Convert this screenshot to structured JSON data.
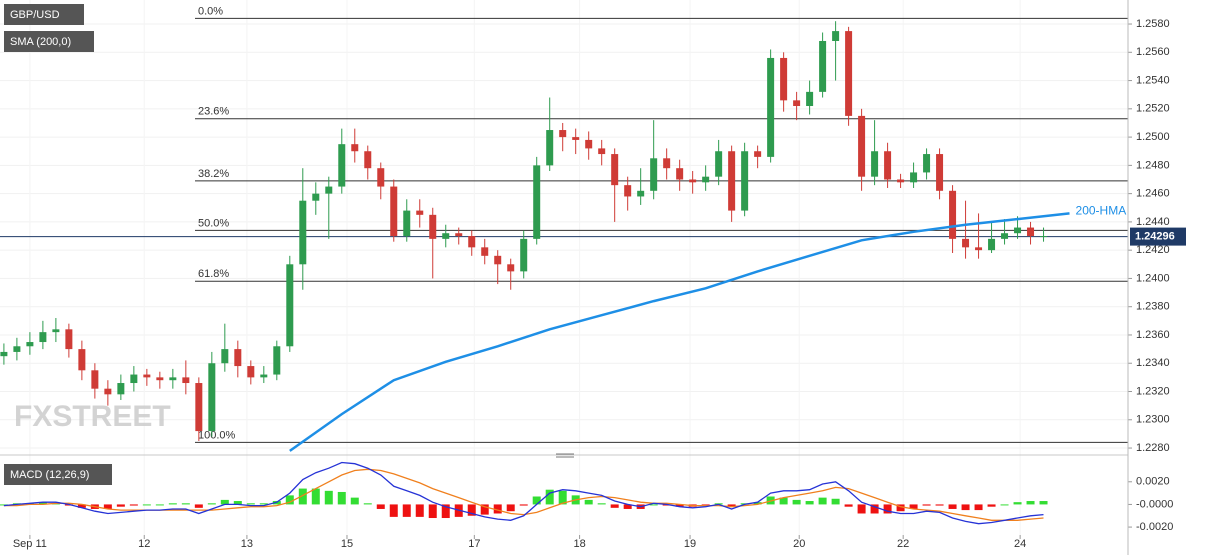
{
  "chart_data": {
    "type": "candlestick",
    "symbol": "GBP/USD",
    "indicator": "SMA (200,0)",
    "watermark": "FXSTREET",
    "up_color": "#2e9b4f",
    "down_color": "#cf3b36",
    "grid": true,
    "xlim": [
      -0.3,
      86.5
    ],
    "xticks": [
      {
        "value": 2,
        "label": "Sep 11"
      },
      {
        "value": 10.8,
        "label": "12"
      },
      {
        "value": 18.7,
        "label": "13"
      },
      {
        "value": 26.4,
        "label": "15"
      },
      {
        "value": 36.2,
        "label": "17"
      },
      {
        "value": 44.3,
        "label": "18"
      },
      {
        "value": 52.8,
        "label": "19"
      },
      {
        "value": 61.2,
        "label": "20"
      },
      {
        "value": 69.2,
        "label": "22"
      },
      {
        "value": 78.2,
        "label": "24"
      }
    ],
    "ylim": [
      1.22772,
      1.2597
    ],
    "yticks": [
      {
        "value": 1.228,
        "label": "1.2280"
      },
      {
        "value": 1.23,
        "label": "1.2300"
      },
      {
        "value": 1.232,
        "label": "1.2320"
      },
      {
        "value": 1.234,
        "label": "1.2340"
      },
      {
        "value": 1.236,
        "label": "1.2360"
      },
      {
        "value": 1.238,
        "label": "1.2380"
      },
      {
        "value": 1.24,
        "label": "1.2400"
      },
      {
        "value": 1.242,
        "label": "1.2420"
      },
      {
        "value": 1.244,
        "label": "1.2440"
      },
      {
        "value": 1.246,
        "label": "1.2460"
      },
      {
        "value": 1.248,
        "label": "1.2480"
      },
      {
        "value": 1.25,
        "label": "1.2500"
      },
      {
        "value": 1.252,
        "label": "1.2520"
      },
      {
        "value": 1.254,
        "label": "1.2540"
      },
      {
        "value": 1.256,
        "label": "1.2560"
      },
      {
        "value": 1.258,
        "label": "1.2580"
      }
    ],
    "open": [
      1.2345,
      1.2348,
      1.2352,
      1.2355,
      1.2362,
      1.2364,
      1.235,
      1.2335,
      1.2322,
      1.2318,
      1.2326,
      1.2332,
      1.233,
      1.2328,
      1.233,
      1.2326,
      1.2292,
      1.234,
      1.235,
      1.2338,
      1.233,
      1.2332,
      1.2352,
      1.241,
      1.2455,
      1.246,
      1.2465,
      1.2495,
      1.249,
      1.2478,
      1.2465,
      1.243,
      1.2448,
      1.2445,
      1.2428,
      1.2432,
      1.243,
      1.2422,
      1.2416,
      1.241,
      1.2405,
      1.2428,
      1.248,
      1.2505,
      1.25,
      1.2498,
      1.2492,
      1.2488,
      1.2466,
      1.2458,
      1.2462,
      1.2485,
      1.2478,
      1.247,
      1.2468,
      1.2472,
      1.249,
      1.2448,
      1.249,
      1.2486,
      1.2556,
      1.2526,
      1.2522,
      1.2532,
      1.2568,
      1.2575,
      1.2515,
      1.2472,
      1.249,
      1.247,
      1.2468,
      1.2475,
      1.2488,
      1.2462,
      1.2428,
      1.2422,
      1.242,
      1.2428,
      1.2432,
      1.2436,
      1.243
    ],
    "high": [
      1.2354,
      1.2358,
      1.2362,
      1.237,
      1.2372,
      1.2368,
      1.2356,
      1.234,
      1.2328,
      1.2332,
      1.2338,
      1.2336,
      1.2334,
      1.2336,
      1.2342,
      1.233,
      1.2348,
      1.2368,
      1.2356,
      1.2342,
      1.2338,
      1.2356,
      1.2416,
      1.2478,
      1.2468,
      1.2472,
      1.2506,
      1.2506,
      1.2494,
      1.2482,
      1.247,
      1.2456,
      1.2456,
      1.245,
      1.2438,
      1.2436,
      1.2434,
      1.2428,
      1.242,
      1.2414,
      1.2434,
      1.2486,
      1.2528,
      1.251,
      1.2506,
      1.2504,
      1.2498,
      1.2492,
      1.2472,
      1.2478,
      1.2512,
      1.2492,
      1.2484,
      1.2476,
      1.248,
      1.2498,
      1.2494,
      1.2496,
      1.2494,
      1.2562,
      1.256,
      1.2532,
      1.254,
      1.2574,
      1.2582,
      1.2578,
      1.252,
      1.2512,
      1.2496,
      1.2474,
      1.2482,
      1.2492,
      1.2492,
      1.2466,
      1.2455,
      1.2446,
      1.244,
      1.2442,
      1.2444,
      1.244,
      1.2436
    ],
    "low": [
      1.2339,
      1.2342,
      1.2346,
      1.235,
      1.2355,
      1.2344,
      1.2328,
      1.2315,
      1.231,
      1.2314,
      1.232,
      1.2324,
      1.2322,
      1.2322,
      1.2318,
      1.2285,
      1.2288,
      1.2334,
      1.233,
      1.2325,
      1.2326,
      1.2328,
      1.2348,
      1.2392,
      1.2445,
      1.2428,
      1.246,
      1.2482,
      1.247,
      1.2456,
      1.2426,
      1.2426,
      1.2436,
      1.24,
      1.2422,
      1.2424,
      1.2416,
      1.241,
      1.2396,
      1.2392,
      1.24,
      1.2424,
      1.2476,
      1.249,
      1.2488,
      1.2484,
      1.248,
      1.244,
      1.2448,
      1.2452,
      1.2456,
      1.247,
      1.2462,
      1.246,
      1.2462,
      1.2466,
      1.244,
      1.2444,
      1.2478,
      1.2482,
      1.2518,
      1.2512,
      1.2516,
      1.2528,
      1.254,
      1.2508,
      1.2462,
      1.2466,
      1.2464,
      1.2464,
      1.2464,
      1.247,
      1.2456,
      1.2418,
      1.2414,
      1.2414,
      1.2418,
      1.2424,
      1.2428,
      1.2424,
      1.2426
    ],
    "close": [
      1.2348,
      1.2352,
      1.2355,
      1.2362,
      1.2364,
      1.235,
      1.2335,
      1.2322,
      1.2318,
      1.2326,
      1.2332,
      1.233,
      1.2328,
      1.233,
      1.2326,
      1.2292,
      1.234,
      1.235,
      1.2338,
      1.233,
      1.2332,
      1.2352,
      1.241,
      1.2455,
      1.246,
      1.2465,
      1.2495,
      1.249,
      1.2478,
      1.2465,
      1.243,
      1.2448,
      1.2445,
      1.2428,
      1.2432,
      1.243,
      1.2422,
      1.2416,
      1.241,
      1.2405,
      1.2428,
      1.248,
      1.2505,
      1.25,
      1.2498,
      1.2492,
      1.2488,
      1.2466,
      1.2458,
      1.2462,
      1.2485,
      1.2478,
      1.247,
      1.2468,
      1.2472,
      1.249,
      1.2448,
      1.249,
      1.2486,
      1.2556,
      1.2526,
      1.2522,
      1.2532,
      1.2568,
      1.2575,
      1.2515,
      1.2472,
      1.249,
      1.247,
      1.2468,
      1.2475,
      1.2488,
      1.2462,
      1.2428,
      1.2422,
      1.242,
      1.2428,
      1.2432,
      1.2436,
      1.243,
      1.243
    ],
    "hma": {
      "name": "200-HMA",
      "color": "#1e8fe6",
      "x": [
        22,
        26,
        30,
        34,
        38,
        42,
        46,
        50,
        54,
        58,
        62,
        66,
        70,
        74,
        78,
        82
      ],
      "values": [
        1.2278,
        1.2304,
        1.2328,
        1.2341,
        1.2352,
        1.2364,
        1.2374,
        1.2384,
        1.2393,
        1.2405,
        1.2416,
        1.2427,
        1.2433,
        1.2438,
        1.2442,
        1.2446
      ]
    },
    "fib_levels": [
      {
        "name": "0.0%",
        "price": 1.2584
      },
      {
        "name": "23.6%",
        "price": 1.2513
      },
      {
        "name": "38.2%",
        "price": 1.2469
      },
      {
        "name": "50.0%",
        "price": 1.2434
      },
      {
        "name": "61.8%",
        "price": 1.2398
      },
      {
        "name": "100.0%",
        "price": 1.2284
      }
    ],
    "last_price": 1.24296,
    "macd": {
      "name": "MACD (12,26,9)",
      "ylim": [
        -0.0027,
        0.0041
      ],
      "yticks": [
        {
          "value": 0.002,
          "label": "0.0020"
        },
        {
          "value": 0,
          "label": "-0.0000"
        },
        {
          "value": -0.002,
          "label": "-0.0020"
        }
      ],
      "macd_color": "#2633d6",
      "signal_color": "#f0801e",
      "pos_color": "#33dd33",
      "neg_color": "#ee1111",
      "macd": [
        -0.0001,
        0.0,
        0.0001,
        0.0002,
        0.0002,
        0.0,
        -0.0003,
        -0.0006,
        -0.0008,
        -0.0007,
        -0.0006,
        -0.0005,
        -0.0005,
        -0.0004,
        -0.0004,
        -0.0008,
        -0.0004,
        0.0,
        0.0,
        -0.0001,
        -0.0001,
        0.0002,
        0.001,
        0.0022,
        0.0028,
        0.0032,
        0.0037,
        0.0036,
        0.0032,
        0.0026,
        0.0016,
        0.0012,
        0.0008,
        0.0002,
        -0.0002,
        -0.0005,
        -0.0008,
        -0.0011,
        -0.0013,
        -0.0014,
        -0.001,
        0.0,
        0.001,
        0.0013,
        0.0012,
        0.001,
        0.0008,
        0.0003,
        0.0,
        -0.0002,
        0.0001,
        0.0,
        -0.0002,
        -0.0003,
        -0.0002,
        0.0,
        -0.0004,
        0.0,
        0.0002,
        0.001,
        0.0012,
        0.0012,
        0.0013,
        0.0018,
        0.002,
        0.0012,
        0.0002,
        -0.0002,
        -0.0006,
        -0.0008,
        -0.0008,
        -0.0006,
        -0.0007,
        -0.0012,
        -0.0015,
        -0.0017,
        -0.0016,
        -0.0014,
        -0.0012,
        -0.001,
        -0.0009
      ],
      "signal": [
        -0.0001,
        -0.0001,
        0.0,
        0.0,
        0.0001,
        0.0001,
        0.0,
        -0.0002,
        -0.0004,
        -0.0005,
        -0.0005,
        -0.0005,
        -0.0005,
        -0.0005,
        -0.0005,
        -0.0005,
        -0.0005,
        -0.0004,
        -0.0003,
        -0.0002,
        -0.0002,
        -0.0001,
        0.0002,
        0.0008,
        0.0014,
        0.002,
        0.0026,
        0.003,
        0.0031,
        0.003,
        0.0027,
        0.0023,
        0.0019,
        0.0014,
        0.001,
        0.0006,
        0.0002,
        -0.0002,
        -0.0005,
        -0.0008,
        -0.0009,
        -0.0007,
        -0.0003,
        0.0001,
        0.0004,
        0.0006,
        0.0007,
        0.0006,
        0.0004,
        0.0002,
        0.0001,
        0.0001,
        0.0,
        -0.0001,
        -0.0001,
        -0.0001,
        -0.0002,
        -0.0001,
        0.0,
        0.0003,
        0.0006,
        0.0008,
        0.001,
        0.0012,
        0.0015,
        0.0014,
        0.001,
        0.0006,
        0.0002,
        -0.0002,
        -0.0004,
        -0.0005,
        -0.0006,
        -0.0008,
        -0.001,
        -0.0012,
        -0.0014,
        -0.0014,
        -0.0014,
        -0.0013,
        -0.0012
      ],
      "histogram": [
        0.0,
        0.0001,
        0.0001,
        0.0002,
        0.0001,
        -0.0001,
        -0.0003,
        -0.0004,
        -0.0004,
        -0.0002,
        -0.0001,
        0.0,
        0.0,
        0.0001,
        0.0001,
        -0.0003,
        0.0001,
        0.0004,
        0.0003,
        0.0001,
        0.0001,
        0.0003,
        0.0008,
        0.0014,
        0.0014,
        0.0012,
        0.0011,
        0.0006,
        0.0001,
        -0.0004,
        -0.0011,
        -0.0011,
        -0.0011,
        -0.0012,
        -0.0012,
        -0.0011,
        -0.001,
        -0.0009,
        -0.0008,
        -0.0006,
        -0.0001,
        0.0007,
        0.0013,
        0.0012,
        0.0008,
        0.0004,
        0.0001,
        -0.0003,
        -0.0004,
        -0.0004,
        0.0,
        -0.0001,
        -0.0002,
        -0.0002,
        -0.0001,
        0.0001,
        -0.0002,
        0.0001,
        0.0002,
        0.0007,
        0.0006,
        0.0004,
        0.0003,
        0.0006,
        0.0005,
        -0.0002,
        -0.0008,
        -0.0008,
        -0.0008,
        -0.0006,
        -0.0004,
        -0.0001,
        -0.0001,
        -0.0004,
        -0.0005,
        -0.0005,
        -0.0002,
        0.0,
        0.0002,
        0.0003,
        0.0003
      ]
    }
  }
}
